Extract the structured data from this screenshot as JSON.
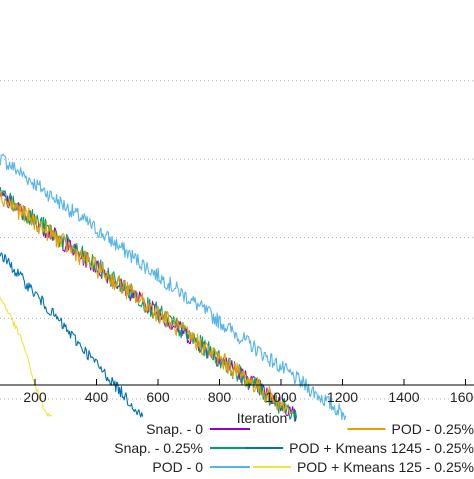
{
  "chart_data": {
    "type": "line",
    "title": "",
    "xlabel": "Iteration",
    "ylabel": "",
    "xlim": [
      -20,
      1640
    ],
    "xticks": [
      200,
      400,
      600,
      800,
      1000,
      1200,
      1400,
      1600
    ],
    "xtick_labels": [
      "200",
      "400",
      "600",
      "800",
      "1000",
      "1200",
      "1400",
      "1600"
    ],
    "ylim": [
      0,
      1
    ],
    "grid": true,
    "legend_placement": "bottom",
    "series": [
      {
        "name": "Snap. - 0",
        "color": "#9400d3",
        "x": [
          0,
          1050
        ],
        "y": [
          0.63,
          0.125
        ]
      },
      {
        "name": "Snap. - 0.25%",
        "color": "#009e73",
        "x": [
          0,
          1050
        ],
        "y": [
          0.635,
          0.122
        ]
      },
      {
        "name": "POD - 0",
        "color": "#56b4e9",
        "x": [
          0,
          1210
        ],
        "y": [
          0.71,
          0.125
        ]
      },
      {
        "name": "POD - 0.25%",
        "color": "#e69f00",
        "x": [
          0,
          1040
        ],
        "y": [
          0.628,
          0.13
        ]
      },
      {
        "name": "POD + Kmeans 1245 - 0.25%",
        "color": "#0072b2",
        "x": [
          0,
          550
        ],
        "y": [
          0.53,
          0.123
        ]
      },
      {
        "name": "POD + Kmeans 125 - 0.25%",
        "color": "#f0e442",
        "x": [
          0,
          20,
          100,
          160,
          200,
          235,
          255
        ],
        "y": [
          0.44,
          0.435,
          0.36,
          0.28,
          0.19,
          0.13,
          0.125
        ]
      }
    ]
  }
}
